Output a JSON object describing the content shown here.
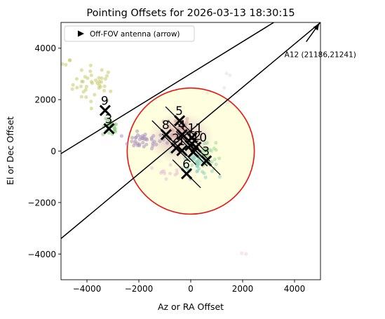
{
  "chart_data": {
    "type": "scatter",
    "title": "Pointing Offsets for 2026-03-13 18:30:15",
    "xlabel": "Az or RA Offset",
    "ylabel": "El or Dec Offset",
    "xlim": [
      -5000,
      5000
    ],
    "ylim": [
      -5000,
      5000
    ],
    "xticks": [
      -4000,
      -2000,
      0,
      2000,
      4000
    ],
    "yticks": [
      -4000,
      -2000,
      0,
      2000,
      4000
    ],
    "xtick_labels": [
      "−4000",
      "−2000",
      "0",
      "2000",
      "4000"
    ],
    "ytick_labels": [
      "−4000",
      "−2000",
      "0",
      "2000",
      "4000"
    ],
    "grid": false,
    "legend": {
      "placement": "top-left",
      "entries": [
        {
          "label": "Off-FOV antenna (arrow)",
          "marker": "right-triangle",
          "color": "#000000"
        }
      ]
    },
    "fov_circle": {
      "center": [
        0,
        0
      ],
      "radius": 2450,
      "edge_color": "#ee1111",
      "fill_color": "#ffffe0"
    },
    "diagonal_lines": [
      {
        "points": [
          [
            -5000,
            -100
          ],
          [
            3200,
            5000
          ]
        ],
        "color": "#000000"
      },
      {
        "points": [
          [
            -5000,
            -3400
          ],
          [
            5000,
            5000
          ]
        ],
        "color": "#000000"
      }
    ],
    "antennas": [
      {
        "label": "5",
        "x": -430,
        "y": 1180
      },
      {
        "label": "8",
        "x": -950,
        "y": 640
      },
      {
        "label": "11",
        "x": 40,
        "y": 520
      },
      {
        "label": "4",
        "x": -330,
        "y": 640
      },
      {
        "label": "2",
        "x": -560,
        "y": 120
      },
      {
        "label": "1",
        "x": -340,
        "y": 20
      },
      {
        "label": "12",
        "x": -20,
        "y": 220
      },
      {
        "label": "10",
        "x": 200,
        "y": 150
      },
      {
        "label": "7",
        "x": 100,
        "y": -40
      },
      {
        "label": "3",
        "x": 600,
        "y": -380
      },
      {
        "label": "6",
        "x": -160,
        "y": -880
      },
      {
        "label": "9",
        "x": -3300,
        "y": 1580
      },
      {
        "label": "3",
        "x": -3150,
        "y": 870
      }
    ],
    "off_fov_arrows": [
      {
        "label": "A12 (21186,21241)",
        "from": [
          4450,
          4250
        ],
        "to": [
          4950,
          4950
        ]
      }
    ],
    "scatter_clusters": [
      {
        "color": "#c8c86a",
        "center": [
          -3700,
          2600
        ],
        "spread": [
          700,
          600
        ],
        "count": 40
      },
      {
        "color": "#c8c86a",
        "center": [
          -4800,
          3400
        ],
        "spread": [
          150,
          150
        ],
        "count": 4
      },
      {
        "color": "#a98ec2",
        "center": [
          -1800,
          400
        ],
        "spread": [
          700,
          250
        ],
        "count": 40
      },
      {
        "color": "#86c97a",
        "center": [
          -3100,
          900
        ],
        "spread": [
          250,
          280
        ],
        "count": 24
      },
      {
        "color": "#d8a0a0",
        "center": [
          -500,
          900
        ],
        "spread": [
          400,
          400
        ],
        "count": 40
      },
      {
        "color": "#8ed0c8",
        "center": [
          300,
          -400
        ],
        "spread": [
          500,
          500
        ],
        "count": 60
      },
      {
        "color": "#9fd88f",
        "center": [
          600,
          -200
        ],
        "spread": [
          300,
          500
        ],
        "count": 30
      },
      {
        "color": "#e6c0d2",
        "center": [
          -800,
          -700
        ],
        "spread": [
          400,
          300
        ],
        "count": 12
      },
      {
        "color": "#f0d0d8",
        "center": [
          2100,
          -3950
        ],
        "spread": [
          150,
          80
        ],
        "count": 2
      },
      {
        "color": "#e0e0e0",
        "center": [
          1600,
          2400
        ],
        "spread": [
          800,
          600
        ],
        "count": 6
      }
    ]
  }
}
